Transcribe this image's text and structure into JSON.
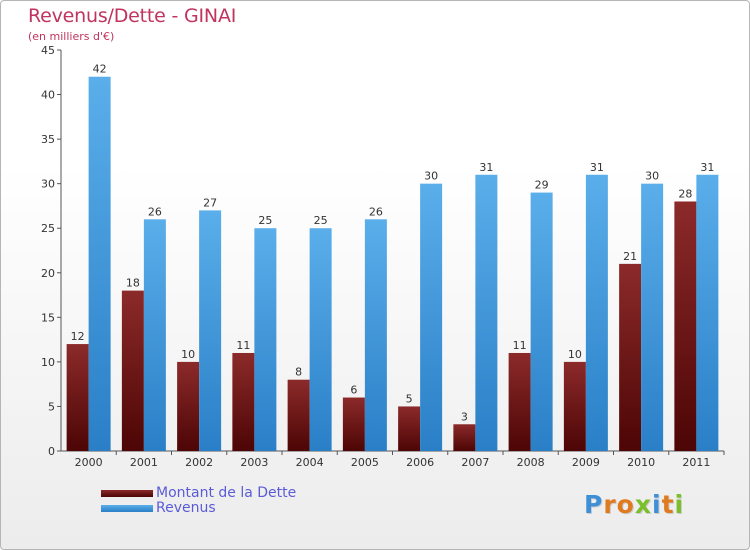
{
  "chart_data": {
    "type": "bar",
    "title": "Revenus/Dette - GINAI",
    "subtitle": "(en milliers d'€)",
    "categories": [
      "2000",
      "2001",
      "2002",
      "2003",
      "2004",
      "2005",
      "2006",
      "2007",
      "2008",
      "2009",
      "2010",
      "2011"
    ],
    "series": [
      {
        "name": "Montant de la Dette",
        "values": [
          12,
          18,
          10,
          11,
          8,
          6,
          5,
          3,
          11,
          10,
          21,
          28
        ],
        "color": "#7a1c1c"
      },
      {
        "name": "Revenus",
        "values": [
          42,
          26,
          27,
          25,
          25,
          26,
          30,
          31,
          29,
          31,
          30,
          31
        ],
        "color": "#3d95d9"
      }
    ],
    "ylim": [
      0,
      45
    ],
    "yticks": [
      0,
      5,
      10,
      15,
      20,
      25,
      30,
      35,
      40,
      45
    ],
    "xlabel": "",
    "ylabel": "",
    "grid": false,
    "legend": "bottom-left"
  },
  "logo": {
    "letters": [
      "P",
      "r",
      "o",
      "x",
      "i",
      "t",
      "i"
    ],
    "colors": [
      "#3d8fd6",
      "#e07a1f",
      "#e07a1f",
      "#7bbf2a",
      "#3d8fd6",
      "#e07a1f",
      "#7bbf2a"
    ]
  }
}
